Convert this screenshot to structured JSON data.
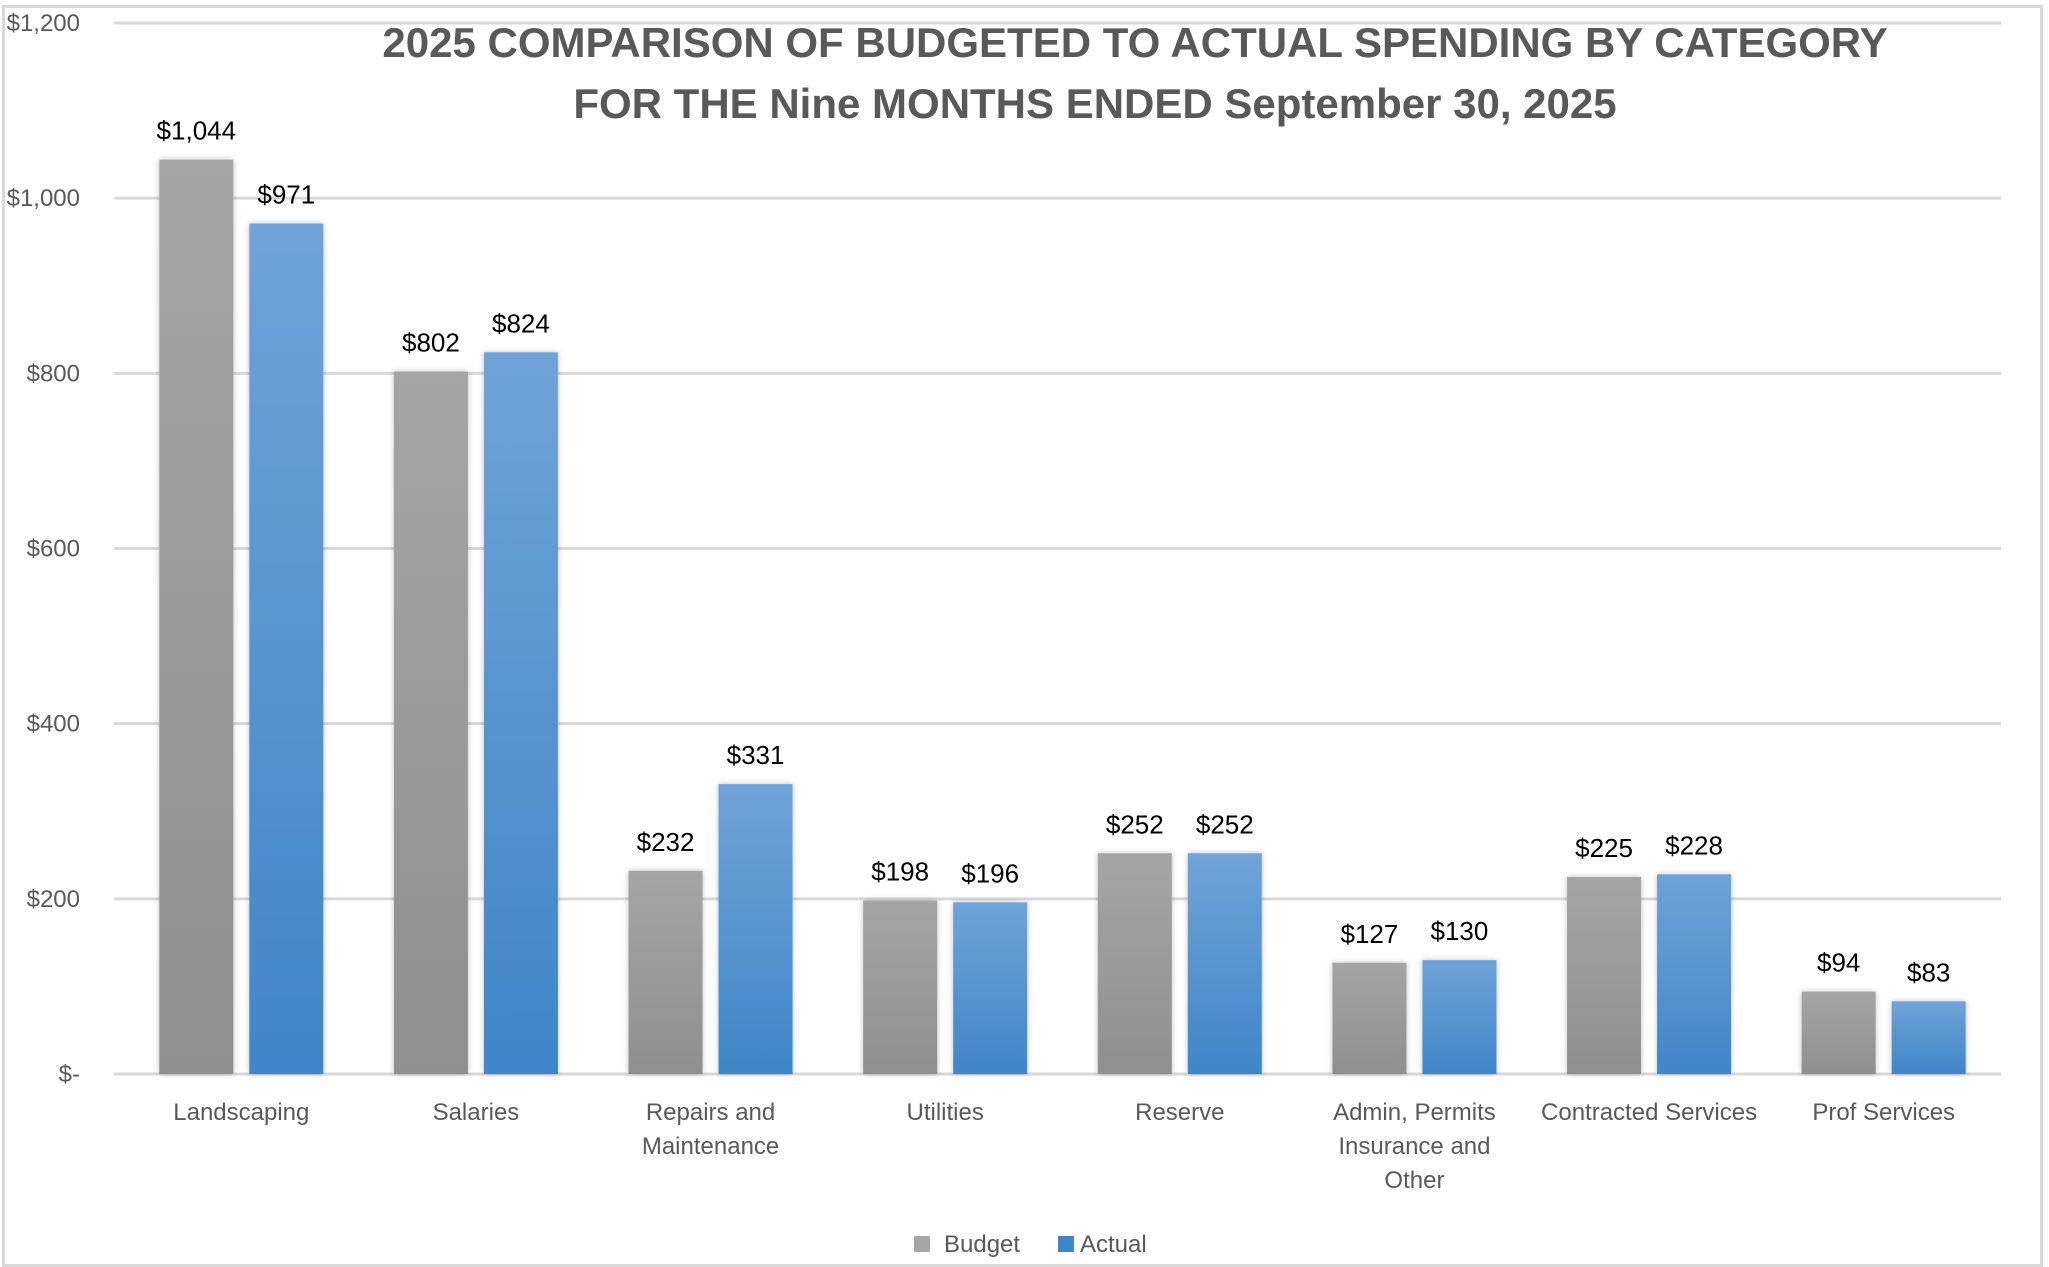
{
  "chart_data": {
    "type": "bar",
    "title": "2025 COMPARISON OF BUDGETED TO ACTUAL SPENDING BY CATEGORY",
    "subtitle": "FOR THE Nine MONTHS ENDED September 30, 2025",
    "xlabel": "",
    "ylabel": "",
    "ylim": [
      0,
      1200
    ],
    "yticks": [
      0,
      200,
      400,
      600,
      800,
      1000,
      1200
    ],
    "ytick_labels": [
      "$-",
      "$200",
      "$400",
      "$600",
      "$800",
      "$1,000",
      "$1,200"
    ],
    "grid": true,
    "legend_position": "bottom-center",
    "categories": [
      [
        "Landscaping"
      ],
      [
        "Salaries"
      ],
      [
        "Repairs and",
        "Maintenance"
      ],
      [
        "Utilities"
      ],
      [
        "Reserve"
      ],
      [
        "Admin, Permits",
        "Insurance and",
        "Other"
      ],
      [
        "Contracted Services"
      ],
      [
        "Prof Services"
      ]
    ],
    "series": [
      {
        "name": "Budget",
        "color": "#a5a5a5",
        "color_dark": "#8f8f8f",
        "values": [
          1044,
          802,
          232,
          198,
          252,
          127,
          225,
          94
        ],
        "labels": [
          "$1,044",
          "$802",
          "$232",
          "$198",
          "$252",
          "$127",
          "$225",
          "$94"
        ]
      },
      {
        "name": "Actual",
        "color": "#6fa3d8",
        "color_dark": "#3f86c8",
        "values": [
          971,
          824,
          331,
          196,
          252,
          130,
          228,
          83
        ],
        "labels": [
          "$971",
          "$824",
          "$331",
          "$196",
          "$252",
          "$130",
          "$228",
          "$83"
        ]
      }
    ]
  },
  "colors": {
    "gridline": "#d9d9d9",
    "text": "#595959",
    "data_label": "#000000"
  }
}
